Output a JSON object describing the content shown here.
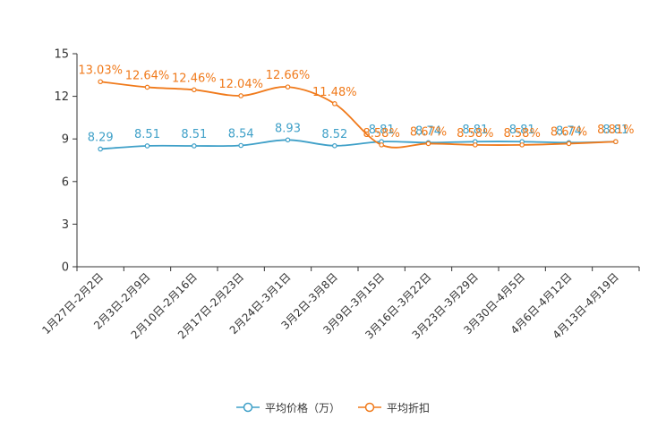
{
  "chart_data": {
    "type": "line",
    "categories": [
      "1月27日-2月2日",
      "2月3日-2月9日",
      "2月10日-2月16日",
      "2月17日-2月23日",
      "2月24日-3月1日",
      "3月2日-3月8日",
      "3月9日-3月15日",
      "3月16日-3月22日",
      "3月23日-3月29日",
      "3月30日-4月5日",
      "4月6日-4月12日",
      "4月13日-4月19日"
    ],
    "ylim": [
      0,
      15
    ],
    "yticks": [
      0,
      3,
      6,
      9,
      12,
      15
    ],
    "series": [
      {
        "name": "平均价格（万）",
        "color": "#3fa0c8",
        "values": [
          8.29,
          8.51,
          8.51,
          8.54,
          8.93,
          8.52,
          8.81,
          8.74,
          8.81,
          8.81,
          8.74,
          8.81
        ],
        "labels": [
          "8.29",
          "8.51",
          "8.51",
          "8.54",
          "8.93",
          "8.52",
          "8.81",
          "8.74",
          "8.81",
          "8.81",
          "8.74",
          "8.81"
        ]
      },
      {
        "name": "平均折扣",
        "color": "#f07a1b",
        "values": [
          13.03,
          12.64,
          12.46,
          12.04,
          12.66,
          11.48,
          8.58,
          8.67,
          8.58,
          8.58,
          8.67,
          8.81
        ],
        "labels": [
          "13.03%",
          "12.64%",
          "12.46%",
          "12.04%",
          "12.66%",
          "11.48%",
          "8.58%",
          "8.67%",
          "8.58%",
          "8.58%",
          "8.67%",
          "8.81%"
        ]
      }
    ]
  }
}
